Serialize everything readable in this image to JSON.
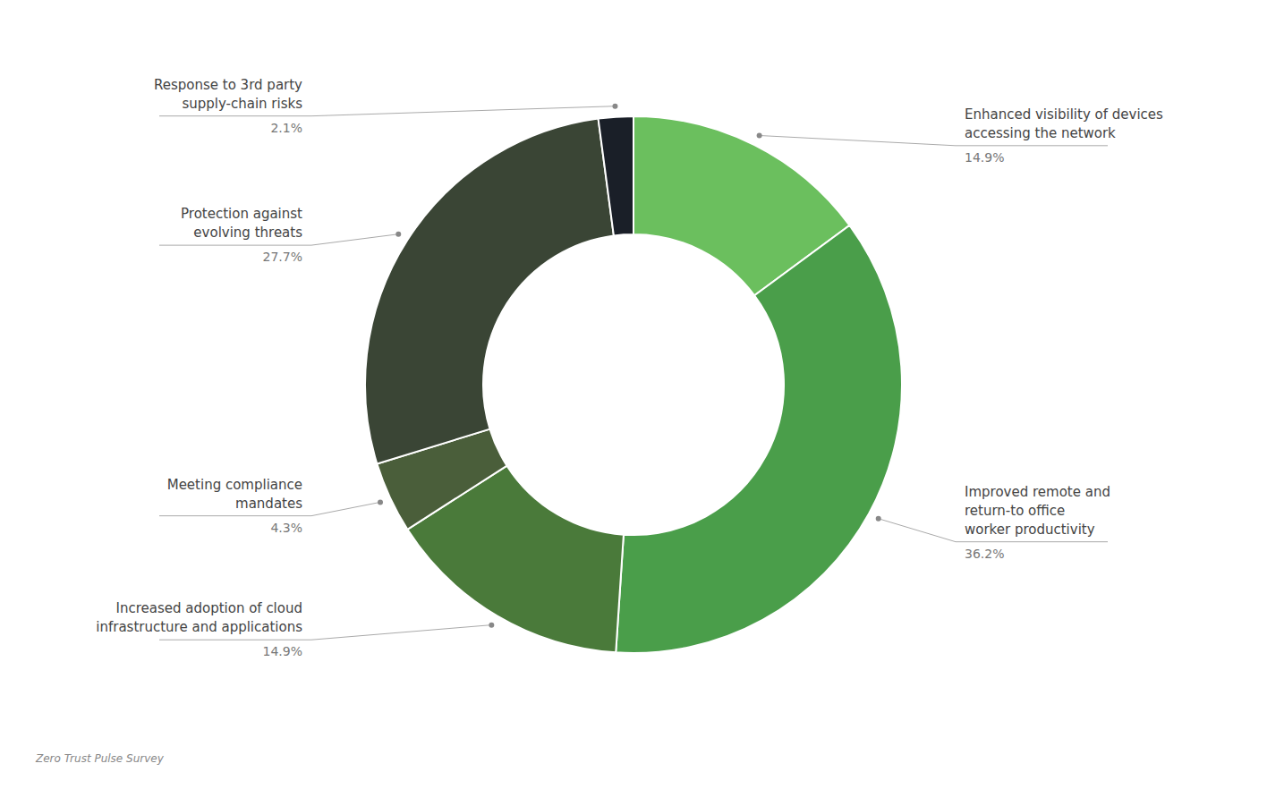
{
  "chart_data": {
    "type": "donut",
    "categories": [
      "Enhanced visibility of devices\naccessing the network",
      "Improved remote and\nreturn-to office\nworker productivity",
      "Increased adoption of cloud\ninfrastructure and applications",
      "Meeting compliance\nmandates",
      "Protection against\nevolving threats",
      "Response to 3rd party\nsupply-chain risks"
    ],
    "values": [
      14.9,
      36.2,
      14.9,
      4.3,
      27.7,
      2.1
    ],
    "value_labels": [
      "14.9%",
      "36.2%",
      "14.9%",
      "4.3%",
      "27.7%",
      "2.1%"
    ],
    "data_labels": true,
    "colors": [
      "#6bbf5e",
      "#4a9e4a",
      "#4a7a3a",
      "#4a5e3a",
      "#3a4535",
      "#1a1f28"
    ],
    "annotations": [
      "Zero Trust Pulse Survey"
    ]
  }
}
